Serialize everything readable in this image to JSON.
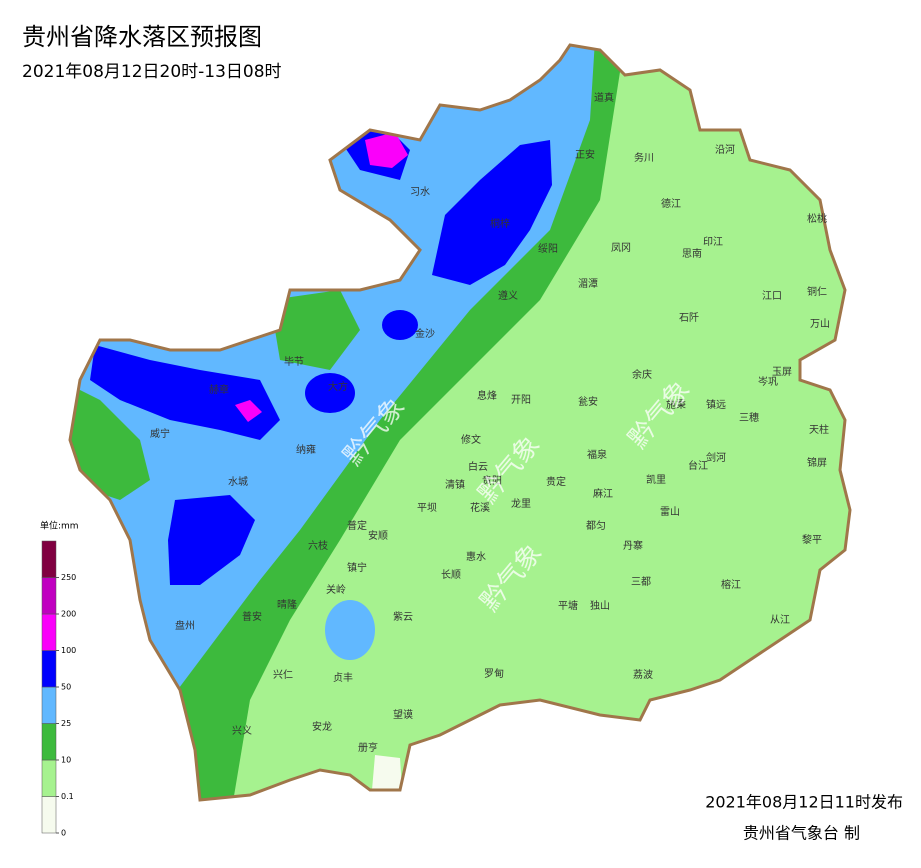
{
  "header": {
    "title": "贵州省降水落区预报图",
    "subtitle": "2021年08月12日20时-13日08时"
  },
  "legend": {
    "unit": "单位:mm",
    "ticks": [
      0,
      0.1,
      10,
      25,
      50,
      100,
      200,
      250
    ],
    "colors": [
      "#f6fbee",
      "#a6f28f",
      "#3dba3d",
      "#61b8ff",
      "#0000fe",
      "#fa00fa",
      "#c000c0",
      "#800040"
    ]
  },
  "map": {
    "watermark": "黔气象",
    "labels": [
      "道真",
      "正安",
      "务川",
      "沿河",
      "习水",
      "桐梓",
      "绥阳",
      "凤冈",
      "德江",
      "印江",
      "思南",
      "松桃",
      "湄潭",
      "遵义",
      "江口",
      "铜仁",
      "万山",
      "石阡",
      "金沙",
      "毕节",
      "大方",
      "赫章",
      "余庆",
      "玉屏",
      "岑巩",
      "息烽",
      "开阳",
      "瓮安",
      "施秉",
      "镇远",
      "三穗",
      "威宁",
      "纳雍",
      "修文",
      "天柱",
      "白云",
      "福泉",
      "台江",
      "剑河",
      "锦屏",
      "清镇",
      "贵阳",
      "贵定",
      "凯里",
      "水城",
      "麻江",
      "平坝",
      "花溪",
      "龙里",
      "雷山",
      "都匀",
      "普定",
      "安顺",
      "黎平",
      "六枝",
      "丹寨",
      "惠水",
      "镇宁",
      "长顺",
      "三都",
      "榕江",
      "关岭",
      "平塘",
      "独山",
      "紫云",
      "盘州",
      "普安",
      "晴隆",
      "从江",
      "兴仁",
      "贞丰",
      "罗甸",
      "荔波",
      "兴义",
      "安龙",
      "望谟",
      "册亨"
    ]
  },
  "footer": {
    "issued": "2021年08月12日11时发布",
    "agency": "贵州省气象台 制"
  }
}
